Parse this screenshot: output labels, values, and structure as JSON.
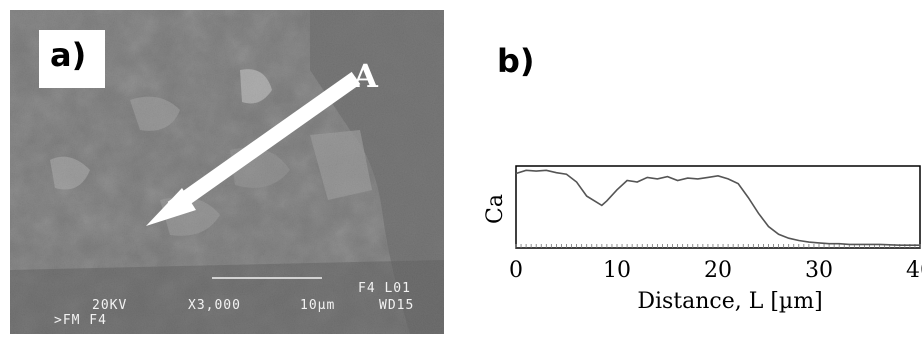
{
  "panel_a": {
    "label": "a)",
    "point_label": "A",
    "micrograph_info": {
      "line0": "F4 L01",
      "accelerating_voltage": "20KV",
      "magnification": "X3,000",
      "scale": "10µm",
      "working_distance": "WD15",
      "sample": ">FM F4"
    }
  },
  "panel_b": {
    "label": "b)"
  },
  "chart_data": {
    "type": "line",
    "title": "",
    "xlabel": "Distance, L [µm]",
    "ylabel": "Ca",
    "xlim": [
      0,
      40
    ],
    "xticks": [
      0,
      10,
      20,
      30,
      40
    ],
    "grid": false,
    "series": [
      {
        "x": [
          0,
          1,
          2,
          3,
          4,
          5,
          6,
          7,
          8,
          8.5,
          9,
          10,
          11,
          12,
          13,
          14,
          15,
          16,
          17,
          18,
          19,
          20,
          21,
          22,
          23,
          24,
          25,
          26,
          27,
          28,
          29,
          30,
          31,
          32,
          33,
          34,
          35,
          36,
          38,
          40
        ],
        "y": [
          0.93,
          0.97,
          0.96,
          0.97,
          0.94,
          0.92,
          0.82,
          0.64,
          0.56,
          0.52,
          0.58,
          0.72,
          0.84,
          0.82,
          0.88,
          0.86,
          0.89,
          0.84,
          0.87,
          0.86,
          0.88,
          0.9,
          0.86,
          0.8,
          0.62,
          0.42,
          0.25,
          0.15,
          0.1,
          0.07,
          0.05,
          0.04,
          0.03,
          0.03,
          0.02,
          0.02,
          0.02,
          0.02,
          0.01,
          0.01
        ]
      }
    ]
  }
}
